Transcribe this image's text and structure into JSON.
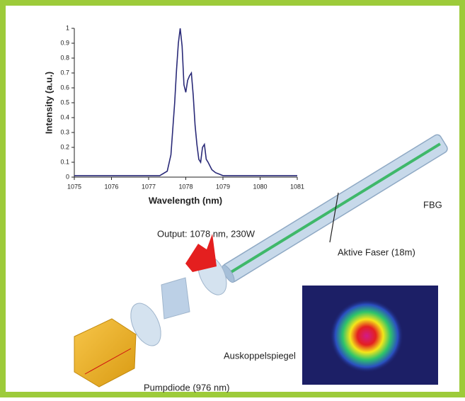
{
  "chart_data": {
    "type": "line",
    "x_label": "Wavelength (nm)",
    "y_label": "Intensity (a.u.)",
    "x": [
      1075,
      1075.5,
      1076,
      1076.5,
      1077,
      1077.3,
      1077.5,
      1077.6,
      1077.7,
      1077.75,
      1077.8,
      1077.85,
      1077.9,
      1077.95,
      1078.0,
      1078.05,
      1078.1,
      1078.15,
      1078.2,
      1078.25,
      1078.3,
      1078.35,
      1078.4,
      1078.45,
      1078.5,
      1078.55,
      1078.6,
      1078.7,
      1078.8,
      1078.9,
      1079,
      1079.5,
      1080,
      1080.5,
      1081
    ],
    "values": [
      0.01,
      0.01,
      0.01,
      0.01,
      0.01,
      0.01,
      0.04,
      0.15,
      0.5,
      0.72,
      0.9,
      1.0,
      0.88,
      0.62,
      0.57,
      0.65,
      0.68,
      0.7,
      0.55,
      0.35,
      0.22,
      0.12,
      0.1,
      0.2,
      0.22,
      0.12,
      0.1,
      0.05,
      0.03,
      0.02,
      0.01,
      0.01,
      0.01,
      0.01,
      0.01
    ],
    "color": "#2a2a78",
    "xlim": [
      1075,
      1081
    ],
    "xticks": [
      1075,
      1076,
      1077,
      1078,
      1079,
      1080,
      1081
    ],
    "ylim": [
      0,
      1
    ],
    "yticks": [
      0,
      0.1,
      0.2,
      0.3,
      0.4,
      0.5,
      0.6,
      0.7,
      0.8,
      0.9,
      1
    ]
  },
  "diagram": {
    "labels": [
      "Output: 1078 nm, 230W",
      "FBG",
      "Aktive Faser (18m)",
      "Auskoppelspiegel",
      "Pumpdiode (976 nm)"
    ]
  }
}
